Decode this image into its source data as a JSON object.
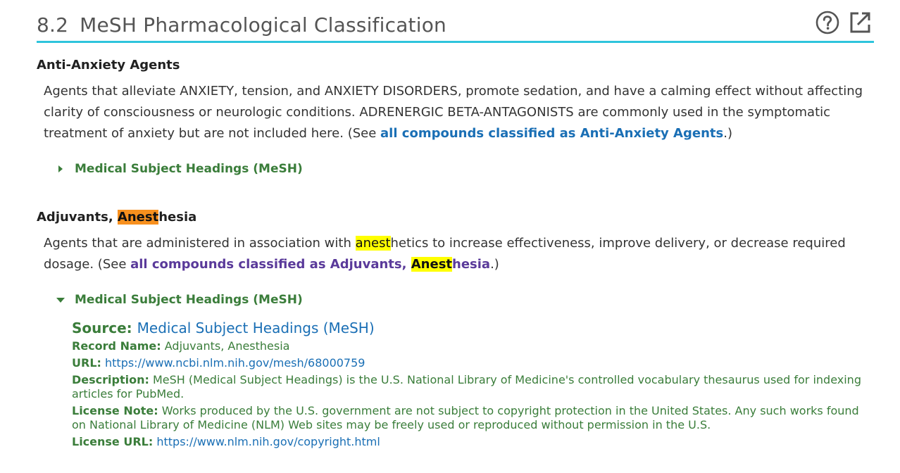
{
  "section": {
    "number": "8.2",
    "title": "MeSH Pharmacological Classification"
  },
  "header_icons": [
    {
      "name": "help-icon"
    },
    {
      "name": "open-external-icon"
    }
  ],
  "items": [
    {
      "title": "Anti-Anxiety Agents",
      "description_before": "Agents that alleviate ANXIETY, tension, and ANXIETY DISORDERS, promote sedation, and have a calming effect without affecting clarity of consciousness or neurologic conditions. ADRENERGIC BETA-ANTAGONISTS are commonly used in the symptomatic treatment of anxiety but are not included here. (See ",
      "link_text": "all compounds classified as Anti-Anxiety Agents",
      "description_after": ".)",
      "toggle_label": "Medical Subject Headings (MeSH)",
      "expanded": false
    },
    {
      "title_prefix": "Adjuvants, ",
      "title_highlight": "Anest",
      "title_suffix": "hesia",
      "desc_part1": "Agents that are administered in association with ",
      "desc_highlight": "anest",
      "desc_part2": "hetics to increase effectiveness, improve delivery, or decrease required dosage. (See ",
      "link_prefix": "all compounds classified as Adjuvants, ",
      "link_highlight": "Anest",
      "link_suffix": "hesia",
      "desc_end": ".)",
      "toggle_label": "Medical Subject Headings (MeSH)",
      "expanded": true,
      "source": {
        "source_label": "Source:",
        "source_name": "Medical Subject Headings (MeSH)",
        "record_name_label": "Record Name:",
        "record_name": "Adjuvants, Anesthesia",
        "url_label": "URL:",
        "url": "https://www.ncbi.nlm.nih.gov/mesh/68000759",
        "description_label": "Description:",
        "description": "MeSH (Medical Subject Headings) is the U.S. National Library of Medicine's controlled vocabulary thesaurus used for indexing articles for PubMed.",
        "license_note_label": "License Note:",
        "license_note": "Works produced by the U.S. government are not subject to copyright protection in the United States. Any such works found on National Library of Medicine (NLM) Web sites may be freely used or reproduced without permission in the U.S.",
        "license_url_label": "License URL:",
        "license_url": "https://www.nlm.nih.gov/copyright.html"
      }
    }
  ],
  "colors": {
    "accent_rule": "#2ec4dc",
    "link": "#1a6fb5",
    "visited_link": "#5a3a9a",
    "source_green": "#3a7d3a",
    "highlight_primary": "#f7901e",
    "highlight_secondary": "#ffff00"
  }
}
